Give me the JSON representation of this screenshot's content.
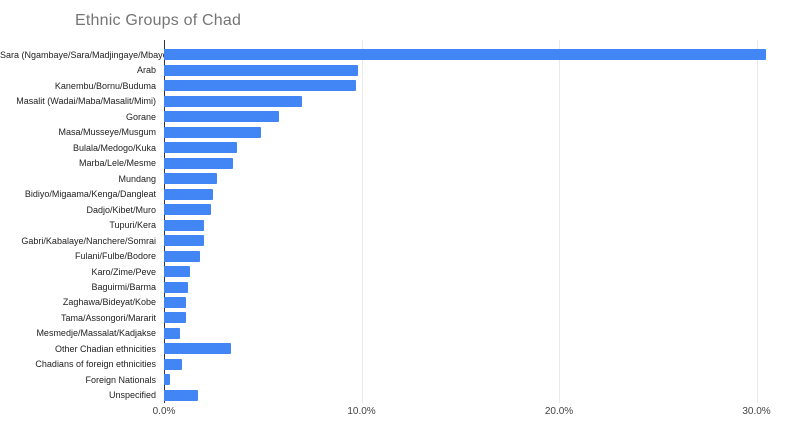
{
  "page": {
    "background_color": "#ffffff"
  },
  "chart_data": {
    "type": "bar",
    "orientation": "horizontal",
    "title": "Ethnic Groups of Chad",
    "title_color": "#757575",
    "bar_color": "#4285f4",
    "gridline_color": "#e9e9e9",
    "baseline_color": "#333333",
    "label_color": "#222222",
    "tick_label_color": "#444444",
    "grid": true,
    "legend_position": "none",
    "xlabel": "",
    "ylabel": "",
    "value_unit": "%",
    "xlim": [
      0,
      32
    ],
    "x_ticks": [
      {
        "value": 0,
        "label": "0.0%"
      },
      {
        "value": 10,
        "label": "10.0%"
      },
      {
        "value": 20,
        "label": "20.0%"
      },
      {
        "value": 30,
        "label": "30.0%"
      }
    ],
    "categories": [
      "Sara (Ngambaye/Sara/Madjingaye/Mbaye)",
      "Arab",
      "Kanembu/Bornu/Buduma",
      "Masalit (Wadai/Maba/Masalit/Mimi)",
      "Gorane",
      "Masa/Musseye/Musgum",
      "Bulala/Medogo/Kuka",
      "Marba/Lele/Mesme",
      "Mundang",
      "Bidiyo/Migaama/Kenga/Dangleat",
      "Dadjo/Kibet/Muro",
      "Tupuri/Kera",
      "Gabri/Kabalaye/Nanchere/Somrai",
      "Fulani/Fulbe/Bodore",
      "Karo/Zime/Peve",
      "Baguirmi/Barma",
      "Zaghawa/Bideyat/Kobe",
      "Tama/Assongori/Mararit",
      "Mesmedje/Massalat/Kadjakse",
      "Other Chadian ethnicities",
      "Chadians of foreign ethnicities",
      "Foreign Nationals",
      "Unspecified"
    ],
    "values": [
      30.5,
      9.8,
      9.7,
      7.0,
      5.8,
      4.9,
      3.7,
      3.5,
      2.7,
      2.5,
      2.4,
      2.0,
      2.0,
      1.8,
      1.3,
      1.2,
      1.1,
      1.1,
      0.8,
      3.4,
      0.9,
      0.3,
      1.7
    ]
  }
}
